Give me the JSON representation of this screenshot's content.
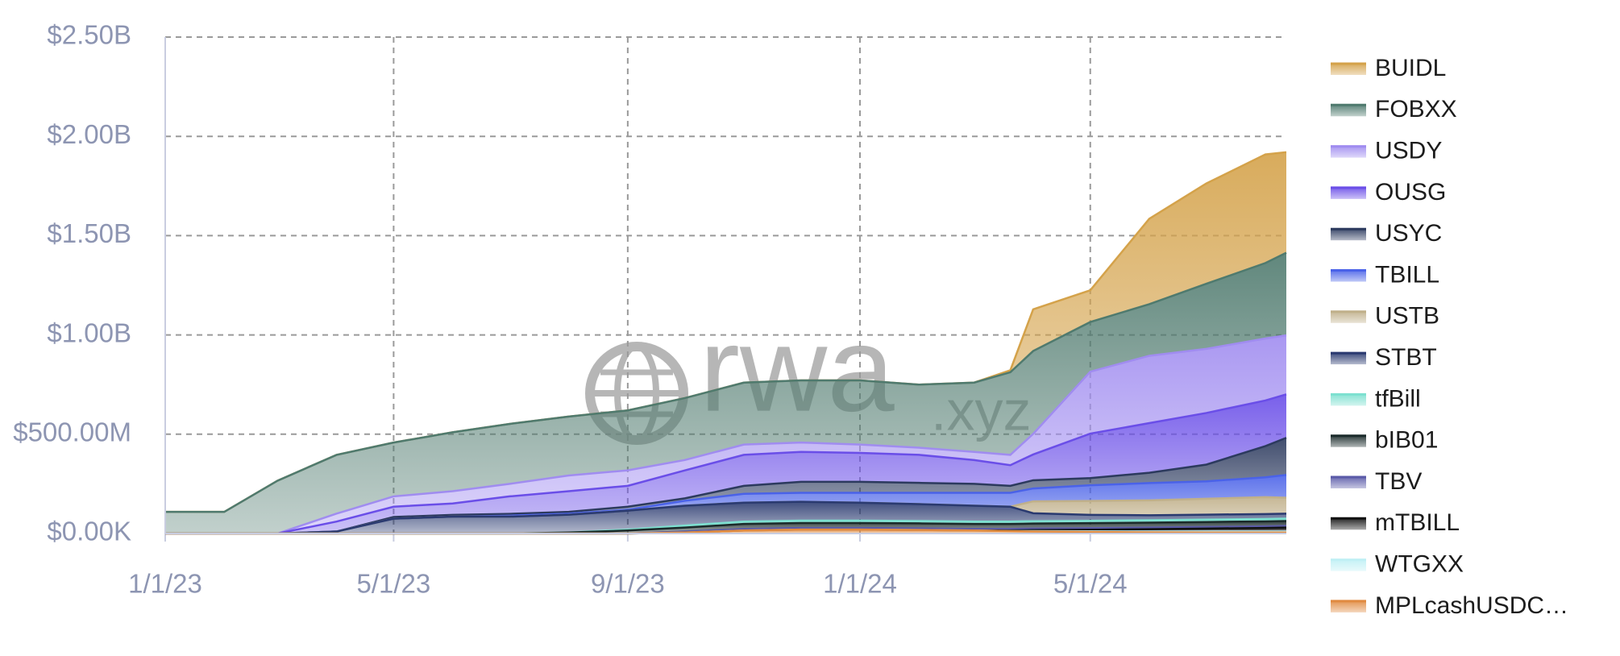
{
  "chart_data": {
    "type": "stacked_area",
    "watermark": {
      "main": "rwa",
      "suffix": ".xyz"
    },
    "x": [
      "1/1/23",
      "2/1/23",
      "3/1/23",
      "4/1/23",
      "5/1/23",
      "6/1/23",
      "7/1/23",
      "8/1/23",
      "9/1/23",
      "10/1/23",
      "11/1/23",
      "12/1/23",
      "1/1/24",
      "2/1/24",
      "3/1/24",
      "3/20/24",
      "4/1/24",
      "5/1/24",
      "6/1/24",
      "7/1/24",
      "8/1/24",
      "8/12/24"
    ],
    "xlim": [
      "1/1/23",
      "8/12/24"
    ],
    "xticks": [
      "1/1/23",
      "5/1/23",
      "9/1/23",
      "1/1/24",
      "5/1/24"
    ],
    "ylim": [
      0,
      2500000000
    ],
    "yticks": [
      {
        "value": 0,
        "label": "$0.00K"
      },
      {
        "value": 500000000,
        "label": "$500.00M"
      },
      {
        "value": 1000000000,
        "label": "$1.00B"
      },
      {
        "value": 1500000000,
        "label": "$1.50B"
      },
      {
        "value": 2000000000,
        "label": "$2.00B"
      },
      {
        "value": 2500000000,
        "label": "$2.50B"
      }
    ],
    "grid": true,
    "legend": "right",
    "series": [
      {
        "name": "BUIDL",
        "color": "#d4a24a",
        "values": [
          0,
          0,
          0,
          0,
          0,
          0,
          0,
          0,
          0,
          0,
          0,
          0,
          0,
          0,
          0,
          10000000,
          210000000,
          160000000,
          430000000,
          505000000,
          547000000,
          506000000
        ]
      },
      {
        "name": "FOBXX",
        "color": "#4f7a6e",
        "values": [
          109000000,
          109000000,
          266000000,
          296000000,
          271000000,
          297000000,
          302000000,
          297000000,
          302000000,
          312000000,
          312000000,
          313000000,
          323000000,
          318000000,
          349000000,
          416000000,
          417000000,
          250000000,
          260000000,
          328000000,
          380000000,
          416000000
        ]
      },
      {
        "name": "USDY",
        "color": "#a08cf0",
        "values": [
          0,
          0,
          0,
          40000000,
          52000000,
          62000000,
          63000000,
          79000000,
          78000000,
          52000000,
          52000000,
          47000000,
          42000000,
          36000000,
          41000000,
          52000000,
          104000000,
          312000000,
          339000000,
          323000000,
          312000000,
          297000000
        ]
      },
      {
        "name": "OUSG",
        "color": "#6a4ee8",
        "values": [
          0,
          0,
          0,
          50000000,
          52000000,
          57000000,
          88000000,
          104000000,
          105000000,
          141000000,
          156000000,
          151000000,
          146000000,
          141000000,
          120000000,
          104000000,
          130000000,
          224000000,
          250000000,
          260000000,
          230000000,
          219000000
        ]
      },
      {
        "name": "USYC",
        "color": "#2c3a5e",
        "values": [
          0,
          0,
          0,
          0,
          8000000,
          9000000,
          9000000,
          9000000,
          15000000,
          12000000,
          40000000,
          55000000,
          55000000,
          50000000,
          45000000,
          35000000,
          41000000,
          36000000,
          52000000,
          84000000,
          157000000,
          187000000
        ]
      },
      {
        "name": "TBILL",
        "color": "#4a62e8",
        "values": [
          0,
          0,
          0,
          0,
          0,
          0,
          5000000,
          5000000,
          5000000,
          25000000,
          45000000,
          45000000,
          50000000,
          57000000,
          65000000,
          70000000,
          65000000,
          79000000,
          87000000,
          88000000,
          100000000,
          115000000
        ]
      },
      {
        "name": "USTB",
        "color": "#c0b08a",
        "values": [
          0,
          0,
          0,
          0,
          0,
          0,
          0,
          0,
          0,
          0,
          0,
          0,
          0,
          0,
          0,
          0,
          60000000,
          70000000,
          75000000,
          80000000,
          85000000,
          80000000
        ]
      },
      {
        "name": "STBT",
        "color": "#2a3a70",
        "values": [
          0,
          0,
          0,
          10000000,
          75000000,
          85000000,
          85000000,
          90000000,
          95000000,
          100000000,
          95000000,
          95000000,
          90000000,
          85000000,
          80000000,
          75000000,
          40000000,
          30000000,
          25000000,
          25000000,
          25000000,
          25000000
        ]
      },
      {
        "name": "tfBill",
        "color": "#7de0d0",
        "values": [
          0,
          0,
          0,
          0,
          0,
          0,
          0,
          0,
          5000000,
          10000000,
          12000000,
          12000000,
          12000000,
          12000000,
          12000000,
          12000000,
          12000000,
          12000000,
          12000000,
          12000000,
          12000000,
          12000000
        ]
      },
      {
        "name": "bIB01",
        "color": "#1a2a2a",
        "values": [
          0,
          0,
          0,
          0,
          0,
          0,
          0,
          5000000,
          15000000,
          20000000,
          25000000,
          25000000,
          25000000,
          25000000,
          25000000,
          25000000,
          25000000,
          25000000,
          25000000,
          25000000,
          25000000,
          25000000
        ]
      },
      {
        "name": "TBV",
        "color": "#5a5aa8",
        "values": [
          0,
          0,
          0,
          0,
          0,
          0,
          0,
          0,
          0,
          5000000,
          8000000,
          8000000,
          8000000,
          8000000,
          8000000,
          8000000,
          8000000,
          8000000,
          8000000,
          8000000,
          8000000,
          8000000
        ]
      },
      {
        "name": "mTBILL",
        "color": "#111111",
        "values": [
          0,
          0,
          0,
          0,
          0,
          0,
          0,
          0,
          0,
          0,
          0,
          0,
          0,
          0,
          0,
          3000000,
          5000000,
          8000000,
          12000000,
          15000000,
          18000000,
          20000000
        ]
      },
      {
        "name": "WTGXX",
        "color": "#bff0f5",
        "values": [
          0,
          0,
          0,
          0,
          0,
          0,
          0,
          0,
          0,
          0,
          0,
          0,
          0,
          0,
          0,
          0,
          2000000,
          3000000,
          4000000,
          5000000,
          5000000,
          5000000
        ]
      },
      {
        "name": "MPLcashUSDC…",
        "color": "#e08a40",
        "values": [
          0,
          0,
          0,
          0,
          0,
          0,
          0,
          0,
          0,
          5000000,
          15000000,
          20000000,
          20000000,
          18000000,
          15000000,
          12000000,
          10000000,
          8000000,
          6000000,
          5000000,
          5000000,
          5000000
        ]
      }
    ]
  }
}
